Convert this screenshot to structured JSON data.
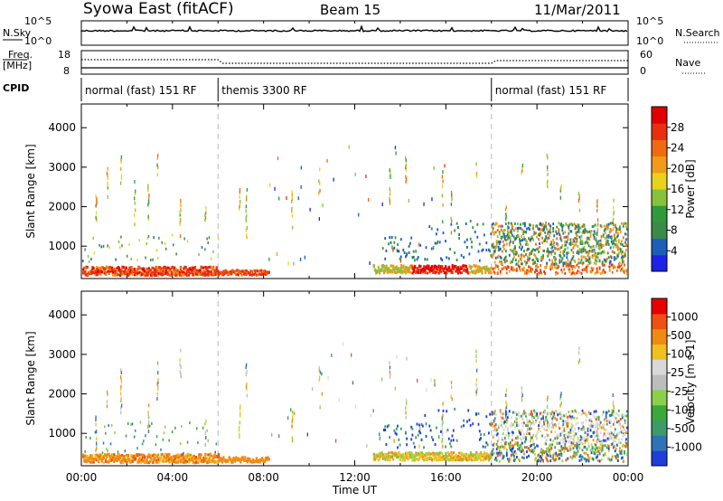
{
  "header": {
    "station": "Syowa East (fitACF)",
    "beam": "Beam 15",
    "date": "11/Mar/2011"
  },
  "top_panels": {
    "nsky_label": "N.Sky",
    "nsearch_label": "N.Search",
    "nsky_ticks": [
      "10^5",
      "10^0"
    ],
    "nsearch_ticks": [
      "10^5",
      "10^0"
    ],
    "freq_label": "Freq.",
    "freq_unit": "[MHz]",
    "freq_ticks": [
      "18",
      "8"
    ],
    "nave_label": "Nave",
    "nave_ticks": [
      "60",
      "0"
    ],
    "cpid_label": "CPID",
    "cpid_segments": [
      {
        "label": "normal (fast) 151 RF",
        "start": 0,
        "end": 6
      },
      {
        "label": "themis 3300 RF",
        "start": 6,
        "end": 18
      },
      {
        "label": "normal (fast) 151 RF",
        "start": 18,
        "end": 24
      }
    ]
  },
  "chart_data": [
    {
      "type": "heatmap",
      "quantity": "Power",
      "ylabel": "Slant Range [km]",
      "yticks": [
        1000,
        2000,
        3000,
        4000
      ],
      "ylim": [
        180,
        4600
      ],
      "xlim": [
        0,
        24
      ],
      "colorbar_label": "Power [dB]",
      "colorbar_ticks": [
        "28",
        "24",
        "20",
        "16",
        "12",
        "8",
        "4"
      ],
      "colors": [
        "#1d22e8",
        "#1e5eb8",
        "#3a8a4a",
        "#2f9a3a",
        "#86c23a",
        "#e8d21e",
        "#f29a1a",
        "#f06a10",
        "#e83010",
        "#e00000"
      ]
    },
    {
      "type": "heatmap",
      "quantity": "Velocity",
      "ylabel": "Slant Range [km]",
      "yticks": [
        1000,
        2000,
        3000,
        4000
      ],
      "ylim": [
        180,
        4600
      ],
      "xlim": [
        0,
        24
      ],
      "xlabel": "Time UT",
      "xtick_labels": [
        "00:00",
        "04:00",
        "08:00",
        "12:00",
        "16:00",
        "20:00",
        "00:00"
      ],
      "colorbar_label": "Velocity [m s-1]",
      "colorbar_ticks": [
        "1000",
        "500",
        "100",
        "25",
        "-25",
        "-100",
        "-500",
        "-1000"
      ],
      "colors": [
        "#1d3fd8",
        "#2f72b8",
        "#3f9a6a",
        "#3aa83a",
        "#8ad04a",
        "#bdbdbd",
        "#d8d8d8",
        "#f0c020",
        "#f08a10",
        "#f05010",
        "#e80000"
      ]
    }
  ]
}
